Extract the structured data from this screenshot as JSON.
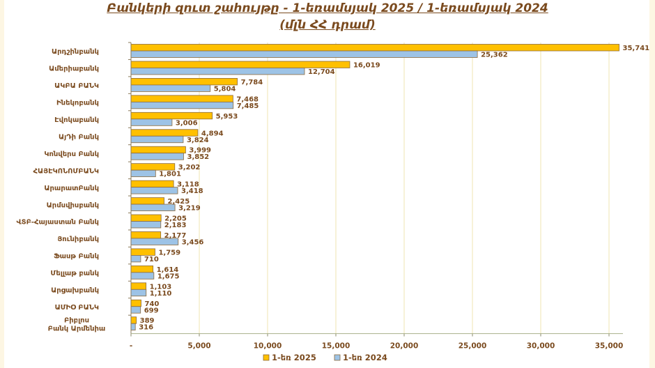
{
  "chart_data": {
    "type": "bar",
    "orientation": "horizontal",
    "title": "Բանկերի զուտ շահույթը - 1-եռամսյակ 2025 / 1-եռամսյակ 2024",
    "subtitle": "(մլն ՀՀ դրամ)",
    "xlabel": "",
    "ylabel": "",
    "xlim": [
      0,
      35000
    ],
    "xticks": [
      0,
      5000,
      10000,
      15000,
      20000,
      25000,
      30000,
      35000
    ],
    "xtick_labels": [
      "-",
      "5,000",
      "10,000",
      "15,000",
      "20,000",
      "25,000",
      "30,000",
      "35,000"
    ],
    "grid": true,
    "legend_position": "bottom",
    "categories": [
      "Արդշինբանկ",
      "Ամերիաբանկ",
      "ԱԿԲԱ ԲԱՆԿ",
      "Ինեկոբանկ",
      "Էվոկաբանկ",
      "ԱյԴի Բանկ",
      "Կոնվերս Բանկ",
      "ՀԱՅԷԿՈՆՈՄԲԱՆԿ",
      "ԱրարատԲանկ",
      "Արմսվիսբանկ",
      "ՎՏԲ-Հայաստան Բանկ",
      "Յունիբանկ",
      "Ֆասթ Բանկ",
      "Մելլաթ բանկ",
      "Արցախբանկ",
      "ԱՄԻՕ ԲԱՆԿ",
      "Բիբլոս Բանկ Արմենիա"
    ],
    "series": [
      {
        "name": "1-եռ 2025",
        "color": "#ffc000",
        "values": [
          35741,
          16019,
          7784,
          7468,
          5953,
          4894,
          3999,
          3202,
          3118,
          2425,
          2205,
          2177,
          1759,
          1614,
          1103,
          740,
          389
        ],
        "labels": [
          "35,741",
          "16,019",
          "7,784",
          "7,468",
          "5,953",
          "4,894",
          "3,999",
          "3,202",
          "3,118",
          "2,425",
          "2,205",
          "2,177",
          "1,759",
          "1,614",
          "1,103",
          "740",
          "389"
        ]
      },
      {
        "name": "1-եռ 2024",
        "color": "#9dc3e6",
        "values": [
          25362,
          12704,
          5804,
          7485,
          3006,
          3824,
          3852,
          1801,
          3418,
          3219,
          2183,
          3456,
          710,
          1675,
          1110,
          699,
          316
        ],
        "labels": [
          "25,362",
          "12,704",
          "5,804",
          "7,485",
          "3,006",
          "3,824",
          "3,852",
          "1,801",
          "3,418",
          "3,219",
          "2,183",
          "3,456",
          "710",
          "1,675",
          "1,110",
          "699",
          "316"
        ]
      }
    ]
  }
}
